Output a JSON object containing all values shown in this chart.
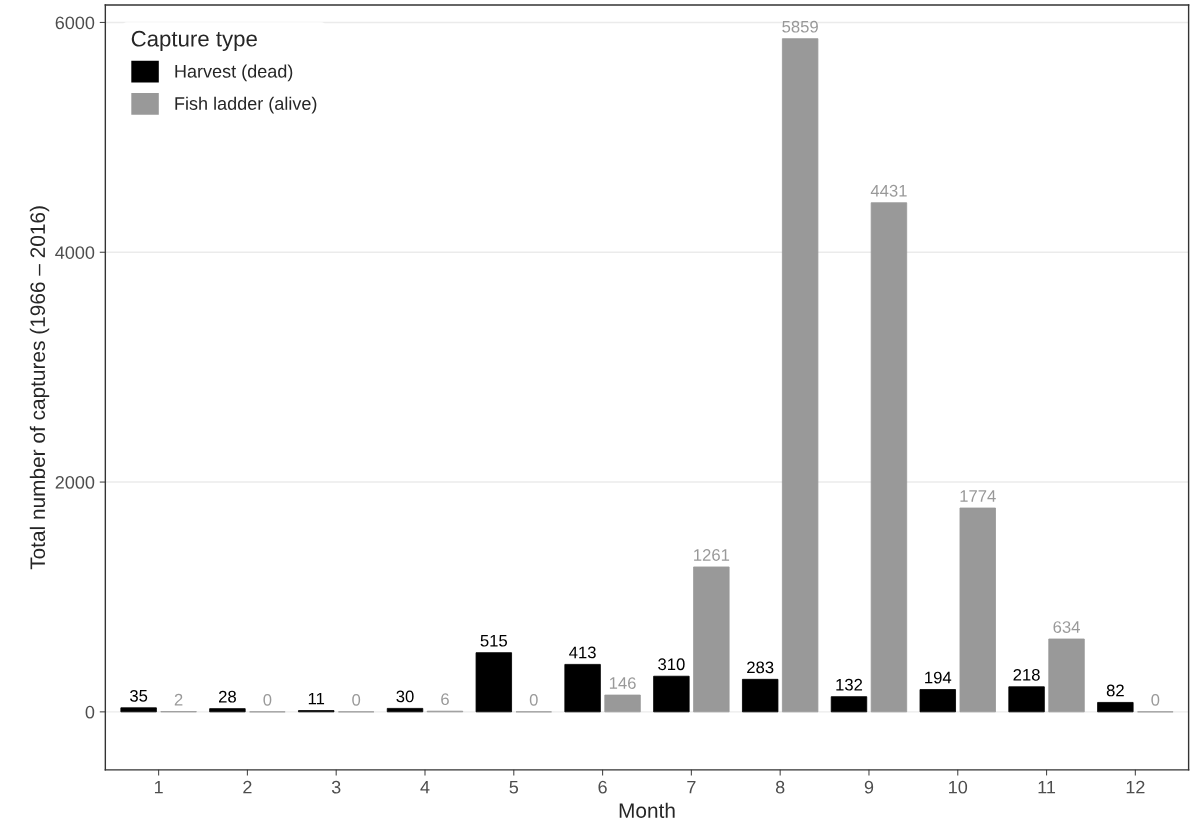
{
  "chart_data": {
    "type": "bar",
    "xlabel": "Month",
    "ylabel": "Total number of captures (1966 – 2016)",
    "legend_title": "Capture type",
    "categories": [
      "1",
      "2",
      "3",
      "4",
      "5",
      "6",
      "7",
      "8",
      "9",
      "10",
      "11",
      "12"
    ],
    "series": [
      {
        "name": "Harvest (dead)",
        "color": "#000000",
        "values": [
          35,
          28,
          11,
          30,
          515,
          413,
          310,
          283,
          132,
          194,
          218,
          82
        ]
      },
      {
        "name": "Fish ladder (alive)",
        "color": "#999999",
        "values": [
          2,
          0,
          0,
          6,
          0,
          146,
          1261,
          5859,
          4431,
          1774,
          634,
          0
        ]
      }
    ],
    "ylim": [
      -505,
      6152
    ],
    "yticks": [
      0,
      2000,
      4000,
      6000
    ],
    "grid": "y",
    "legend": "top left",
    "data_labels": true
  }
}
